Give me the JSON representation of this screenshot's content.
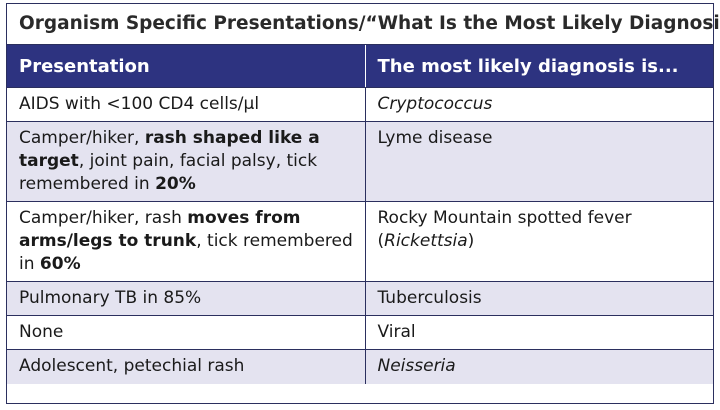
{
  "title": "Organism Specific Presentations/“What Is the Most Likely Diagnosis?”",
  "headers": {
    "presentation": "Presentation",
    "diagnosis": "The most likely diagnosis is..."
  },
  "rows": [
    {
      "presentation": [
        {
          "t": "AIDS with <100 CD4 cells/µl",
          "b": false
        }
      ],
      "diagnosis": [
        {
          "t": "Cryptococcus",
          "i": true
        }
      ]
    },
    {
      "presentation": [
        {
          "t": "Camper/hiker, ",
          "b": false
        },
        {
          "t": "rash shaped like a target",
          "b": true
        },
        {
          "t": ", joint pain, facial palsy, tick remembered in ",
          "b": false
        },
        {
          "t": "20%",
          "b": true
        }
      ],
      "diagnosis": [
        {
          "t": "Lyme disease",
          "i": false
        }
      ]
    },
    {
      "presentation": [
        {
          "t": "Camper/hiker, rash ",
          "b": false
        },
        {
          "t": "moves from arms/legs to trunk",
          "b": true
        },
        {
          "t": ", tick remembered in ",
          "b": false
        },
        {
          "t": "60%",
          "b": true
        }
      ],
      "diagnosis": [
        {
          "t": "Rocky Mountain spotted fever (",
          "i": false
        },
        {
          "t": "Rickettsia",
          "i": true
        },
        {
          "t": ")",
          "i": false
        }
      ]
    },
    {
      "presentation": [
        {
          "t": "Pulmonary TB in 85%",
          "b": false
        }
      ],
      "diagnosis": [
        {
          "t": "Tuberculosis",
          "i": false
        }
      ]
    },
    {
      "presentation": [
        {
          "t": "None",
          "b": false
        }
      ],
      "diagnosis": [
        {
          "t": "Viral",
          "i": false
        }
      ]
    },
    {
      "presentation": [
        {
          "t": "Adolescent, petechial rash",
          "b": false
        }
      ],
      "diagnosis": [
        {
          "t": "Neisseria",
          "i": true
        }
      ]
    }
  ],
  "colors": {
    "header_bg": "#2d3380",
    "row_alt_bg": "#e4e3f0",
    "border": "#2b2f5e"
  }
}
